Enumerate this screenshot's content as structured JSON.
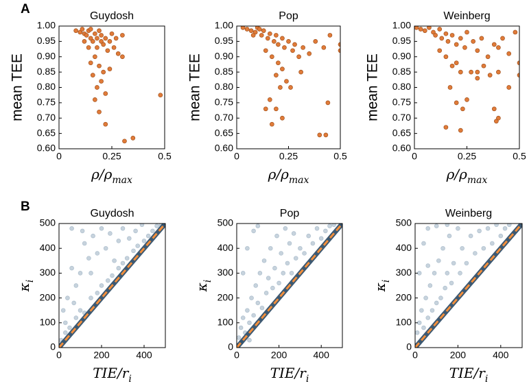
{
  "chart_data": [
    {
      "type": "scatter",
      "panel_label": "A",
      "title": "Guydosh",
      "ylabel": "mean TEE",
      "xlabel": [
        "ρ/ρ",
        "max"
      ],
      "xlim": [
        0,
        0.5
      ],
      "ylim": [
        0.6,
        1.0
      ],
      "xticks": [
        0,
        0.25,
        0.5
      ],
      "yticks": [
        {
          "value": 0.6,
          "label": "0.60"
        },
        {
          "value": 0.65,
          "label": "0.65"
        },
        {
          "value": 0.7,
          "label": "0.70"
        },
        {
          "value": 0.75,
          "label": "0.75"
        },
        {
          "value": 0.8,
          "label": "0.80"
        },
        {
          "value": 0.85,
          "label": "0.85"
        },
        {
          "value": 0.9,
          "label": "0.90"
        },
        {
          "value": 0.95,
          "label": "0.95"
        },
        {
          "value": 1.0,
          "label": "1.00"
        }
      ],
      "color": "#e07b39",
      "edge_color": "#a0501c",
      "opacity": 1,
      "x": [
        0.08,
        0.1,
        0.11,
        0.12,
        0.13,
        0.14,
        0.15,
        0.15,
        0.16,
        0.17,
        0.18,
        0.18,
        0.19,
        0.2,
        0.2,
        0.21,
        0.22,
        0.23,
        0.24,
        0.25,
        0.26,
        0.28,
        0.3,
        0.17,
        0.15,
        0.19,
        0.21,
        0.16,
        0.2,
        0.18,
        0.22,
        0.17,
        0.19,
        0.22,
        0.31,
        0.35,
        0.48,
        0.14,
        0.12,
        0.24,
        0.27,
        0.3
      ],
      "values": [
        0.985,
        0.98,
        0.99,
        0.975,
        0.97,
        0.985,
        0.96,
        0.99,
        0.95,
        0.975,
        0.96,
        0.93,
        0.985,
        0.95,
        0.97,
        0.94,
        0.96,
        0.92,
        0.95,
        0.975,
        0.93,
        0.91,
        0.9,
        0.9,
        0.88,
        0.87,
        0.85,
        0.84,
        0.82,
        0.8,
        0.78,
        0.76,
        0.72,
        0.68,
        0.625,
        0.635,
        0.775,
        0.93,
        0.95,
        0.86,
        0.96,
        0.97
      ]
    },
    {
      "type": "scatter",
      "title": "Pop",
      "ylabel": "mean TEE",
      "xlabel": [
        "ρ/ρ",
        "max"
      ],
      "xlim": [
        0,
        0.5
      ],
      "ylim": [
        0.6,
        1.0
      ],
      "xticks": [
        0,
        0.25,
        0.5
      ],
      "yticks": [
        {
          "value": 0.6,
          "label": "0.60"
        },
        {
          "value": 0.65,
          "label": "0.65"
        },
        {
          "value": 0.7,
          "label": "0.70"
        },
        {
          "value": 0.75,
          "label": "0.75"
        },
        {
          "value": 0.8,
          "label": "0.80"
        },
        {
          "value": 0.85,
          "label": "0.85"
        },
        {
          "value": 0.9,
          "label": "0.90"
        },
        {
          "value": 0.95,
          "label": "0.95"
        },
        {
          "value": 1.0,
          "label": "1.00"
        }
      ],
      "color": "#e07b39",
      "edge_color": "#a0501c",
      "opacity": 1,
      "x": [
        0.03,
        0.05,
        0.07,
        0.09,
        0.1,
        0.12,
        0.13,
        0.15,
        0.16,
        0.18,
        0.19,
        0.2,
        0.22,
        0.23,
        0.25,
        0.27,
        0.28,
        0.3,
        0.32,
        0.35,
        0.38,
        0.42,
        0.45,
        0.5,
        0.5,
        0.14,
        0.17,
        0.2,
        0.22,
        0.19,
        0.24,
        0.21,
        0.26,
        0.16,
        0.19,
        0.14,
        0.22,
        0.17,
        0.4,
        0.43,
        0.44,
        0.31,
        0.11,
        0.08
      ],
      "values": [
        0.995,
        0.99,
        0.985,
        0.98,
        0.995,
        0.97,
        0.985,
        0.96,
        0.975,
        0.95,
        0.97,
        0.94,
        0.96,
        0.93,
        0.95,
        0.92,
        0.94,
        0.9,
        0.93,
        0.91,
        0.95,
        0.93,
        0.97,
        0.94,
        0.92,
        0.92,
        0.9,
        0.88,
        0.86,
        0.84,
        0.82,
        0.8,
        0.8,
        0.76,
        0.73,
        0.73,
        0.7,
        0.68,
        0.645,
        0.645,
        0.75,
        0.85,
        0.99,
        0.97
      ]
    },
    {
      "type": "scatter",
      "title": "Weinberg",
      "ylabel": "mean TEE",
      "xlabel": [
        "ρ/ρ",
        "max"
      ],
      "xlim": [
        0,
        0.5
      ],
      "ylim": [
        0.6,
        1.0
      ],
      "xticks": [
        0,
        0.25,
        0.5
      ],
      "yticks": [
        {
          "value": 0.6,
          "label": "0.60"
        },
        {
          "value": 0.65,
          "label": "0.65"
        },
        {
          "value": 0.7,
          "label": "0.70"
        },
        {
          "value": 0.75,
          "label": "0.75"
        },
        {
          "value": 0.8,
          "label": "0.80"
        },
        {
          "value": 0.85,
          "label": "0.85"
        },
        {
          "value": 0.9,
          "label": "0.90"
        },
        {
          "value": 0.95,
          "label": "0.95"
        },
        {
          "value": 1.0,
          "label": "1.00"
        }
      ],
      "color": "#e07b39",
      "edge_color": "#a0501c",
      "opacity": 1,
      "x": [
        0.01,
        0.03,
        0.05,
        0.07,
        0.09,
        0.1,
        0.12,
        0.13,
        0.15,
        0.16,
        0.18,
        0.2,
        0.22,
        0.24,
        0.25,
        0.28,
        0.3,
        0.32,
        0.35,
        0.38,
        0.4,
        0.42,
        0.45,
        0.48,
        0.5,
        0.5,
        0.12,
        0.15,
        0.18,
        0.2,
        0.22,
        0.27,
        0.3,
        0.33,
        0.36,
        0.4,
        0.45,
        0.17,
        0.25,
        0.2,
        0.23,
        0.38,
        0.4,
        0.39,
        0.15,
        0.22,
        0.3
      ],
      "values": [
        0.995,
        0.99,
        0.985,
        0.995,
        0.98,
        0.97,
        0.99,
        0.96,
        0.975,
        0.95,
        0.97,
        0.94,
        0.96,
        0.93,
        0.98,
        0.95,
        0.92,
        0.96,
        0.9,
        0.94,
        0.93,
        0.96,
        0.91,
        0.98,
        0.88,
        0.84,
        0.92,
        0.9,
        0.87,
        0.88,
        0.85,
        0.85,
        0.85,
        0.87,
        0.84,
        0.85,
        0.8,
        0.8,
        0.76,
        0.75,
        0.73,
        0.73,
        0.7,
        0.69,
        0.67,
        0.66,
        0.83
      ]
    },
    {
      "type": "scatter",
      "panel_label": "B",
      "title": "Guydosh",
      "ylabel": [
        "κ",
        "i"
      ],
      "xlabel": [
        "TIE/r",
        "i"
      ],
      "xlim": [
        0,
        500
      ],
      "ylim": [
        0,
        500
      ],
      "xticks": [
        0,
        200,
        400
      ],
      "yticks": [
        0,
        100,
        200,
        300,
        400,
        500
      ],
      "color": "#1f4e79",
      "edge_color": "#1f4e79",
      "opacity": 0.25,
      "diagonal_color": "#f28e3b",
      "x": [
        10,
        30,
        50,
        80,
        100,
        120,
        150,
        180,
        200,
        230,
        250,
        280,
        300,
        320,
        350,
        370,
        400,
        420,
        440,
        460,
        480,
        20,
        40,
        60,
        80,
        100,
        120,
        140,
        160,
        180,
        200,
        220,
        240,
        260,
        280,
        300,
        330,
        360,
        390,
        60,
        110,
        150,
        30,
        70
      ],
      "values": [
        30,
        60,
        80,
        120,
        150,
        140,
        200,
        220,
        250,
        270,
        290,
        320,
        340,
        360,
        390,
        410,
        430,
        450,
        470,
        490,
        495,
        150,
        200,
        320,
        250,
        300,
        420,
        360,
        450,
        380,
        480,
        400,
        460,
        350,
        430,
        480,
        440,
        470,
        495,
        480,
        470,
        300,
        100,
        180
      ]
    },
    {
      "type": "scatter",
      "title": "Pop",
      "ylabel": [
        "κ",
        "i"
      ],
      "xlabel": [
        "TIE/r",
        "i"
      ],
      "xlim": [
        0,
        500
      ],
      "ylim": [
        0,
        500
      ],
      "xticks": [
        0,
        200,
        400
      ],
      "yticks": [
        0,
        100,
        200,
        300,
        400,
        500
      ],
      "color": "#1f4e79",
      "edge_color": "#1f4e79",
      "opacity": 0.25,
      "diagonal_color": "#f28e3b",
      "x": [
        10,
        20,
        30,
        40,
        50,
        60,
        70,
        80,
        90,
        100,
        110,
        120,
        130,
        140,
        150,
        160,
        170,
        180,
        190,
        200,
        210,
        220,
        230,
        240,
        250,
        260,
        270,
        280,
        300,
        320,
        340,
        360,
        380,
        400,
        420,
        440,
        460,
        30,
        50,
        80,
        100,
        60,
        20
      ],
      "values": [
        40,
        80,
        120,
        60,
        150,
        100,
        200,
        130,
        250,
        180,
        300,
        160,
        350,
        220,
        280,
        400,
        240,
        320,
        450,
        260,
        380,
        300,
        480,
        340,
        420,
        300,
        460,
        360,
        400,
        380,
        450,
        420,
        480,
        440,
        470,
        490,
        495,
        300,
        400,
        470,
        490,
        30,
        20
      ]
    },
    {
      "type": "scatter",
      "title": "Weinberg",
      "ylabel": [
        "κ",
        "i"
      ],
      "xlabel": [
        "TIE/r",
        "i"
      ],
      "xlim": [
        0,
        500
      ],
      "ylim": [
        0,
        500
      ],
      "xticks": [
        0,
        200,
        400
      ],
      "yticks": [
        0,
        100,
        200,
        300,
        400,
        500
      ],
      "color": "#1f4e79",
      "edge_color": "#1f4e79",
      "opacity": 0.25,
      "diagonal_color": "#f28e3b",
      "x": [
        10,
        20,
        30,
        40,
        50,
        60,
        70,
        80,
        90,
        100,
        110,
        120,
        130,
        140,
        150,
        160,
        170,
        180,
        200,
        210,
        220,
        240,
        260,
        280,
        300,
        320,
        340,
        360,
        380,
        400,
        420,
        440,
        20,
        40,
        60,
        100,
        150,
        60
      ],
      "values": [
        60,
        100,
        150,
        80,
        200,
        120,
        250,
        150,
        300,
        180,
        350,
        200,
        400,
        240,
        300,
        450,
        260,
        340,
        480,
        300,
        400,
        340,
        450,
        380,
        470,
        400,
        480,
        420,
        495,
        450,
        480,
        495,
        300,
        420,
        480,
        490,
        495,
        330
      ]
    }
  ]
}
